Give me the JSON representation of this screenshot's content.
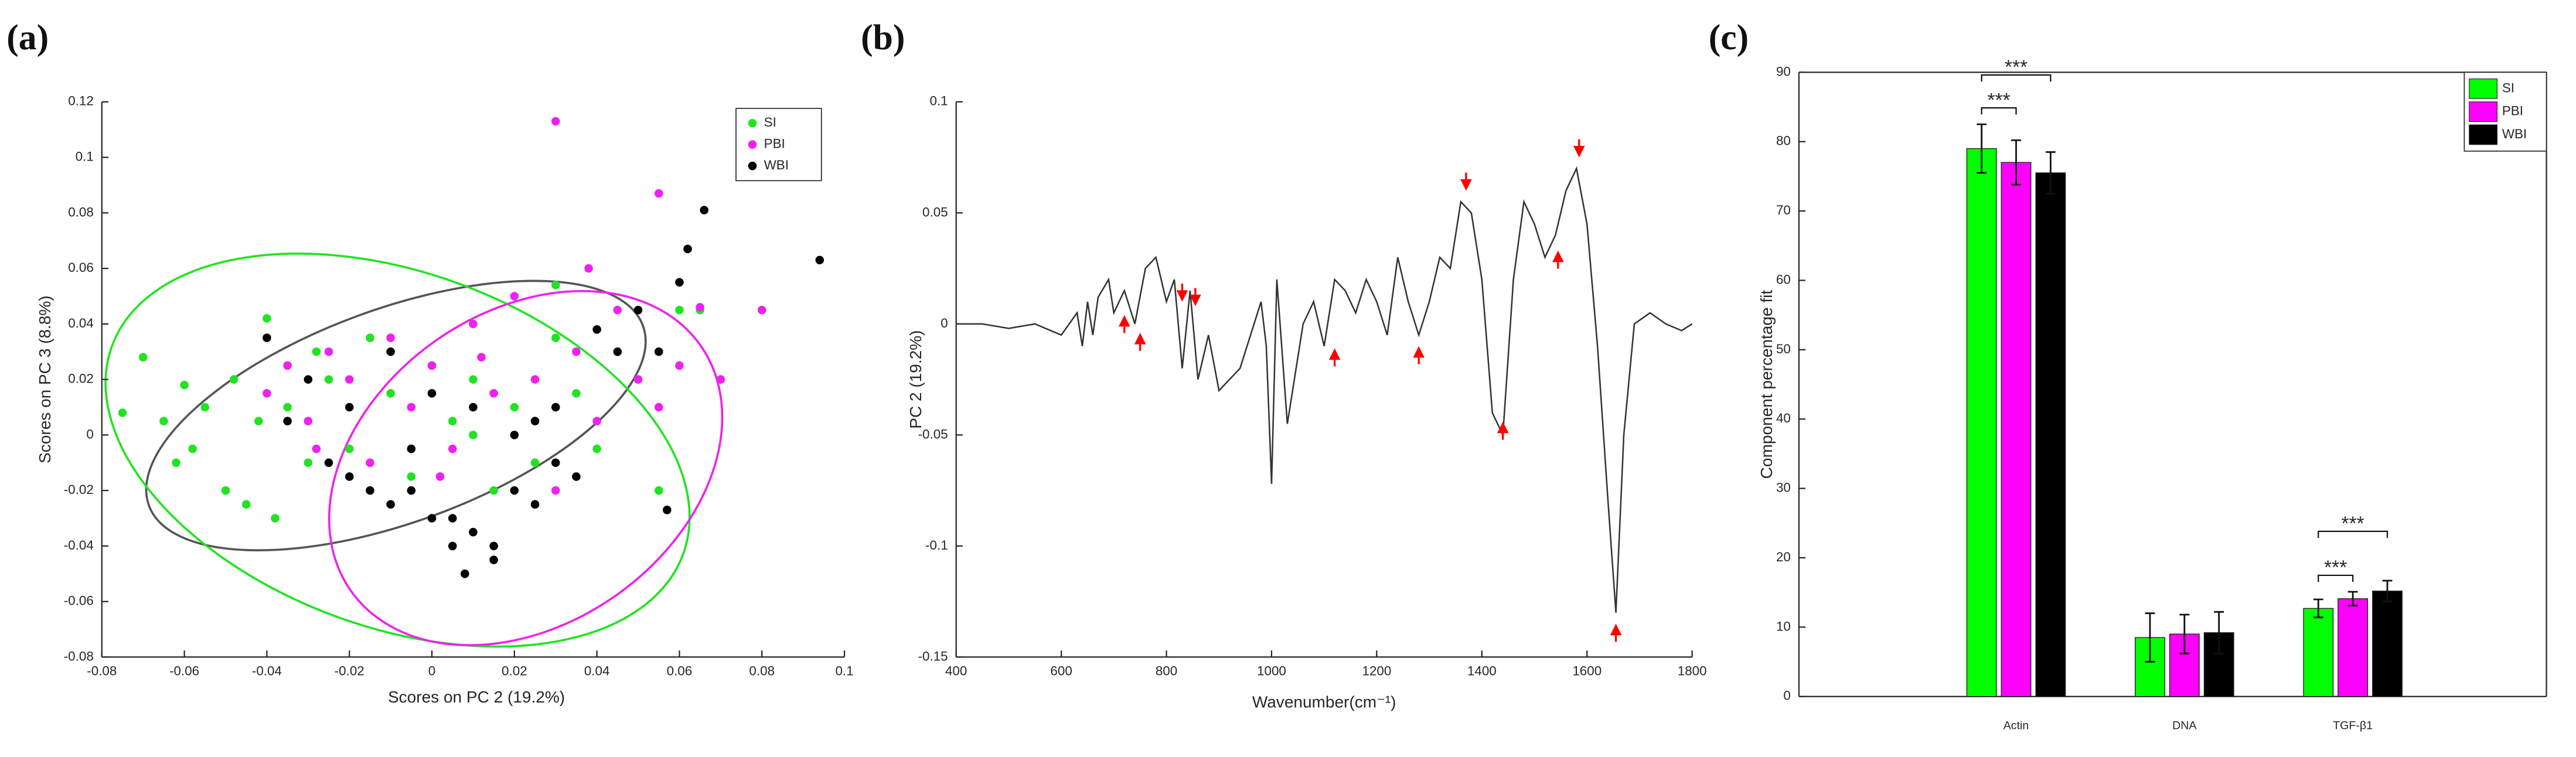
{
  "chart_data": [
    {
      "type": "scatter",
      "panel": "(a)",
      "xlabel": "Scores on PC 2 (19.2%)",
      "ylabel": "Scores on PC 3 (8.8%)",
      "xlim": [
        -0.08,
        0.1
      ],
      "xticks": [
        -0.08,
        -0.06,
        -0.04,
        -0.02,
        0,
        0.02,
        0.04,
        0.06,
        0.08,
        0.1
      ],
      "ylim": [
        -0.08,
        0.12
      ],
      "yticks": [
        -0.08,
        -0.06,
        -0.04,
        -0.02,
        0,
        0.02,
        0.04,
        0.06,
        0.08,
        0.1,
        0.12
      ],
      "legend": "upper right",
      "series": [
        {
          "name": "SI",
          "color": "#22e322",
          "x": [
            -0.075,
            -0.07,
            -0.065,
            -0.06,
            -0.058,
            -0.055,
            -0.05,
            -0.048,
            -0.045,
            -0.042,
            -0.04,
            -0.035,
            -0.03,
            -0.028,
            -0.025,
            -0.02,
            -0.015,
            -0.01,
            -0.005,
            0,
            0.005,
            0.01,
            0.015,
            0.02,
            0.025,
            0.03,
            0.035,
            0.04,
            0.045,
            0.05,
            0.055,
            0.06,
            0.065,
            0.07,
            -0.038,
            -0.062,
            0.01,
            0.03
          ],
          "y": [
            0.008,
            0.028,
            0.005,
            0.018,
            -0.005,
            0.01,
            -0.02,
            0.02,
            -0.025,
            0.005,
            0.042,
            0.01,
            -0.01,
            0.03,
            0.02,
            -0.005,
            0.035,
            0.015,
            -0.015,
            0.025,
            0.005,
            0.02,
            -0.02,
            0.01,
            -0.01,
            0.054,
            0.015,
            -0.005,
            0.03,
            0.02,
            -0.02,
            0.045,
            0.045,
            0.02,
            -0.03,
            -0.01,
            0,
            0.035
          ]
        },
        {
          "name": "PBI",
          "color": "#ee22ee",
          "x": [
            -0.04,
            -0.035,
            -0.03,
            -0.025,
            -0.02,
            -0.015,
            -0.01,
            -0.005,
            0,
            0.005,
            0.01,
            0.015,
            0.02,
            0.025,
            0.03,
            0.035,
            0.04,
            0.045,
            0.05,
            0.055,
            0.06,
            0.065,
            0.07,
            0.08,
            0.03,
            0.055,
            -0.028,
            0.012,
            0.038,
            0.002
          ],
          "y": [
            0.015,
            0.025,
            0.005,
            0.03,
            0.02,
            -0.01,
            0.035,
            0.01,
            0.025,
            -0.005,
            0.04,
            0.015,
            0.05,
            0.02,
            0.113,
            0.03,
            0.005,
            0.045,
            0.02,
            0.087,
            0.025,
            0.046,
            0.02,
            0.045,
            -0.02,
            0.01,
            -0.005,
            0.028,
            0.06,
            -0.015
          ]
        },
        {
          "name": "WBI",
          "color": "#000000",
          "x": [
            -0.04,
            -0.035,
            -0.03,
            -0.025,
            -0.02,
            -0.015,
            -0.01,
            -0.005,
            0,
            0.005,
            0.01,
            0.015,
            0.02,
            0.025,
            0.03,
            0.035,
            0.04,
            0.045,
            0.05,
            0.055,
            0.06,
            0.062,
            0.066,
            0.094,
            -0.02,
            -0.01,
            0,
            0.01,
            0.02,
            0.03,
            0.015,
            0.005,
            -0.005,
            0.025,
            0.057,
            0.008
          ],
          "y": [
            0.035,
            0.005,
            0.02,
            -0.01,
            0.01,
            -0.02,
            0.03,
            -0.005,
            0.015,
            -0.03,
            0.01,
            -0.04,
            0,
            -0.025,
            0.01,
            -0.015,
            0.038,
            0.03,
            0.045,
            0.03,
            0.055,
            0.067,
            0.081,
            0.063,
            -0.015,
            -0.025,
            -0.03,
            -0.035,
            -0.02,
            -0.01,
            -0.045,
            -0.04,
            -0.02,
            0.005,
            -0.027,
            -0.05
          ]
        }
      ]
    },
    {
      "type": "line",
      "panel": "(b)",
      "xlabel": "Wavenumber(cm⁻¹)",
      "ylabel": "PC 2 (19.2%)",
      "xlim": [
        400,
        1800
      ],
      "xticks": [
        400,
        600,
        800,
        1000,
        1200,
        1400,
        1600,
        1800
      ],
      "ylim": [
        -0.15,
        0.1
      ],
      "yticks": [
        -0.15,
        -0.1,
        -0.05,
        0,
        0.05,
        0.1
      ],
      "color": "#333333",
      "marker_color": "#ff0000",
      "x": [
        400,
        450,
        500,
        550,
        600,
        630,
        640,
        650,
        660,
        670,
        690,
        700,
        720,
        740,
        760,
        780,
        800,
        815,
        830,
        845,
        860,
        880,
        900,
        920,
        940,
        960,
        980,
        990,
        1000,
        1010,
        1030,
        1060,
        1080,
        1100,
        1120,
        1140,
        1160,
        1180,
        1200,
        1220,
        1240,
        1260,
        1280,
        1300,
        1320,
        1340,
        1360,
        1380,
        1400,
        1420,
        1440,
        1460,
        1480,
        1500,
        1520,
        1540,
        1560,
        1580,
        1600,
        1620,
        1640,
        1655,
        1670,
        1690,
        1720,
        1750,
        1780,
        1800
      ],
      "values": [
        0,
        0,
        -0.002,
        0,
        -0.005,
        0.005,
        -0.01,
        0.01,
        -0.005,
        0.012,
        0.02,
        0.005,
        0.015,
        0,
        0.025,
        0.03,
        0.01,
        0.02,
        -0.02,
        0.015,
        -0.025,
        -0.005,
        -0.03,
        -0.025,
        -0.02,
        -0.005,
        0.01,
        -0.01,
        -0.072,
        0.02,
        -0.045,
        0,
        0.01,
        -0.01,
        0.02,
        0.015,
        0.005,
        0.02,
        0.01,
        -0.005,
        0.03,
        0.01,
        -0.005,
        0.01,
        0.03,
        0.025,
        0.055,
        0.05,
        0.02,
        -0.04,
        -0.05,
        0.02,
        0.055,
        0.045,
        0.03,
        0.04,
        0.06,
        0.07,
        0.045,
        -0.01,
        -0.08,
        -0.13,
        -0.05,
        0,
        0.005,
        0,
        -0.003,
        0
      ],
      "markers": [
        {
          "x": 720,
          "y": 0.004,
          "direction": "up"
        },
        {
          "x": 750,
          "y": -0.004,
          "direction": "up"
        },
        {
          "x": 830,
          "y": 0.01,
          "direction": "down"
        },
        {
          "x": 855,
          "y": 0.008,
          "direction": "down"
        },
        {
          "x": 1120,
          "y": -0.011,
          "direction": "up"
        },
        {
          "x": 1280,
          "y": -0.01,
          "direction": "up"
        },
        {
          "x": 1370,
          "y": 0.06,
          "direction": "down"
        },
        {
          "x": 1440,
          "y": -0.044,
          "direction": "up"
        },
        {
          "x": 1545,
          "y": 0.033,
          "direction": "up"
        },
        {
          "x": 1585,
          "y": 0.075,
          "direction": "down"
        },
        {
          "x": 1655,
          "y": -0.135,
          "direction": "up"
        }
      ]
    },
    {
      "type": "bar",
      "panel": "(c)",
      "ylabel": "Component percentage fit",
      "box": true,
      "legend": "upper right",
      "categories": [
        "Actin",
        "DNA",
        "TGF-β1"
      ],
      "ylim": [
        0,
        90
      ],
      "yticks": [
        0,
        10,
        20,
        30,
        40,
        50,
        60,
        70,
        80,
        90
      ],
      "series": [
        {
          "name": "SI",
          "color": "#00ff00",
          "values": [
            79,
            8.5,
            12.7
          ],
          "errors": [
            3.5,
            3.5,
            1.3
          ]
        },
        {
          "name": "PBI",
          "color": "#ff00ff",
          "values": [
            77,
            9,
            14.1
          ],
          "errors": [
            3.2,
            2.8,
            1.0
          ]
        },
        {
          "name": "WBI",
          "color": "#000000",
          "values": [
            75.5,
            9.2,
            15.2
          ],
          "errors": [
            3.0,
            3.0,
            1.5
          ]
        }
      ],
      "annotations": [
        {
          "text": "***",
          "category": 0,
          "from": 0,
          "to": 1
        },
        {
          "text": "***",
          "category": 0,
          "from": 0,
          "to": 2
        },
        {
          "text": "***",
          "category": 2,
          "from": 0,
          "to": 1
        },
        {
          "text": "***",
          "category": 2,
          "from": 0,
          "to": 2
        }
      ]
    }
  ]
}
